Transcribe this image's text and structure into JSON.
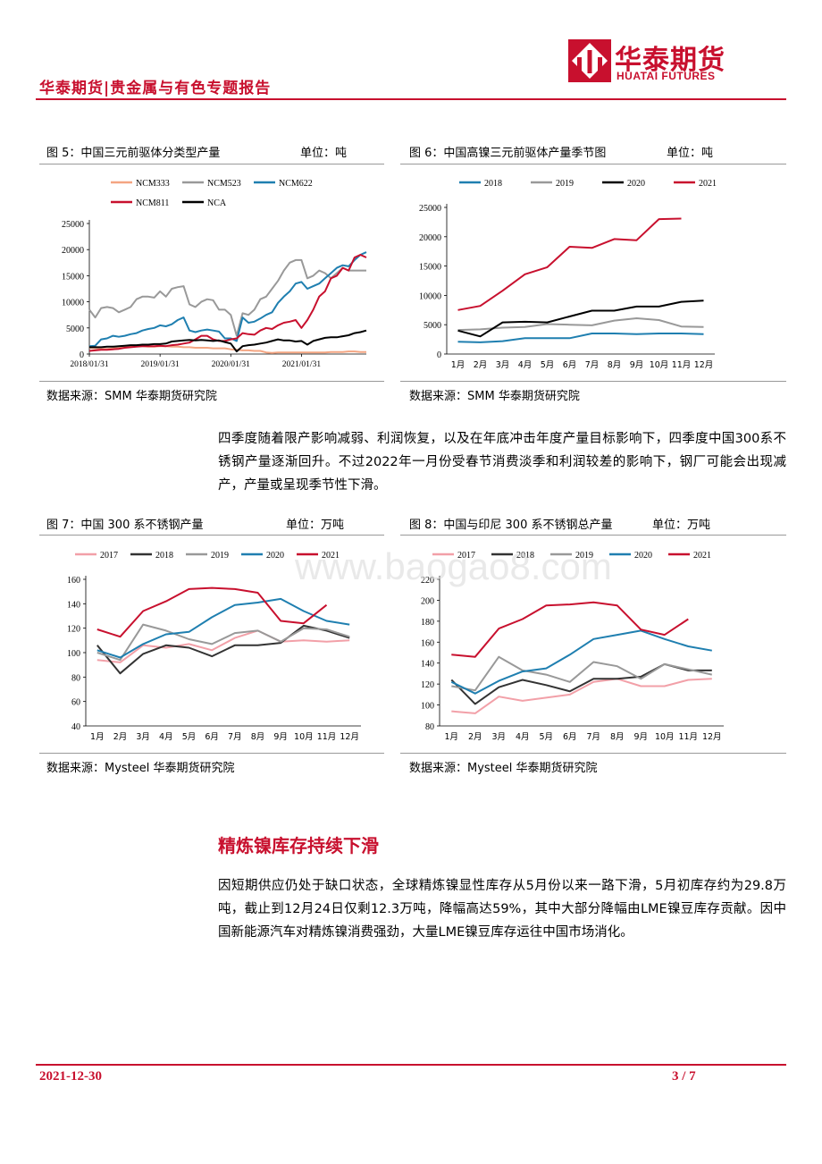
{
  "header": {
    "title": "华泰期货|贵金属与有色专题报告",
    "logo_cn": "华泰期货",
    "logo_en": "HUATAI FUTURES",
    "brand_color": "#c8102e"
  },
  "figures": [
    {
      "title": "图 5：中国三元前驱体分类型产量",
      "unit": "单位：吨",
      "source": "数据来源：SMM 华泰期货研究院"
    },
    {
      "title": "图 6：中国高镍三元前驱体产量季节图",
      "unit": "单位：吨",
      "source": "数据来源：SMM 华泰期货研究院"
    },
    {
      "title": "图 7：中国 300 系不锈钢产量",
      "unit": "单位：万吨",
      "source": "数据来源：Mysteel 华泰期货研究院"
    },
    {
      "title": "图 8：中国与印尼 300 系不锈钢总产量",
      "unit": "单位：万吨",
      "source": "数据来源：Mysteel 华泰期货研究院"
    }
  ],
  "paragraph1": "四季度随着限产影响减弱、利润恢复，以及在年底冲击年度产量目标影响下，四季度中国300系不锈钢产量逐渐回升。不过2022年一月份受春节消费淡季和利润较差的影响下，钢厂可能会出现减产，产量或呈现季节性下滑。",
  "section_title": "精炼镍库存持续下滑",
  "paragraph2": "因短期供应仍处于缺口状态，全球精炼镍显性库存从5月份以来一路下滑，5月初库存约为29.8万吨，截止到12月24日仅剩12.3万吨，降幅高达59%，其中大部分降幅由LME镍豆库存贡献。因中国新能源汽车对精炼镍消费强劲，大量LME镍豆库存运往中国市场消化。",
  "watermark": "www.baogao8.com",
  "footer": {
    "date": "2021-12-30",
    "page": "3 / 7"
  },
  "chart_data": [
    {
      "type": "line",
      "title": "图 5：中国三元前驱体分类型产量",
      "ylim": [
        0,
        25000
      ],
      "yticks": [
        "0",
        "5000",
        "10000",
        "15000",
        "20000",
        "25000"
      ],
      "xticks": [
        "2018/01/31",
        "2019/01/31",
        "2020/01/31",
        "2021/01/31"
      ],
      "n_points": 48,
      "series": [
        {
          "name": "NCM333",
          "color": "#f4a582",
          "values": [
            1200,
            1100,
            1000,
            1000,
            1100,
            1200,
            1300,
            1400,
            1500,
            1500,
            1400,
            1400,
            1500,
            1500,
            1400,
            1400,
            1300,
            1300,
            1200,
            1200,
            1200,
            1100,
            1100,
            1100,
            900,
            800,
            700,
            700,
            600,
            600,
            300,
            200,
            300,
            300,
            300,
            300,
            300,
            300,
            300,
            300,
            300,
            400,
            400,
            400,
            500,
            500,
            400,
            400
          ]
        },
        {
          "name": "NCM523",
          "color": "#999999",
          "values": [
            8500,
            7000,
            8800,
            9000,
            8800,
            8000,
            8500,
            9000,
            10500,
            11000,
            11000,
            10800,
            12000,
            11000,
            12500,
            12800,
            13000,
            9500,
            9000,
            10000,
            10500,
            10300,
            8500,
            8500,
            7500,
            3500,
            7800,
            7500,
            8500,
            10500,
            11000,
            12500,
            14000,
            16000,
            17500,
            18000,
            18000,
            14500,
            15000,
            16000,
            15500,
            14500,
            15500,
            16500,
            16000,
            16000,
            16000,
            16000
          ]
        },
        {
          "name": "NCM622",
          "color": "#1f7fb0",
          "values": [
            1500,
            1600,
            2800,
            3000,
            3500,
            3300,
            3500,
            3800,
            4000,
            4500,
            4800,
            5000,
            5500,
            5300,
            5700,
            6500,
            7000,
            4500,
            4200,
            4500,
            4700,
            4500,
            4300,
            3000,
            3000,
            2500,
            7000,
            6000,
            6200,
            6800,
            7500,
            8000,
            9800,
            11000,
            12000,
            13500,
            13800,
            12500,
            13000,
            13500,
            14500,
            15500,
            16500,
            17000,
            16800,
            18000,
            19000,
            19500
          ]
        },
        {
          "name": "NCM811",
          "color": "#c8102e",
          "values": [
            600,
            700,
            800,
            800,
            900,
            1000,
            1200,
            1300,
            1400,
            1500,
            1500,
            1500,
            1600,
            1500,
            1700,
            1800,
            2000,
            2200,
            2800,
            3500,
            3500,
            2800,
            2500,
            2500,
            2800,
            3000,
            4000,
            3800,
            3700,
            4500,
            5000,
            4800,
            5500,
            6000,
            6200,
            6500,
            5000,
            6500,
            8500,
            11000,
            12000,
            14500,
            15000,
            16500,
            16000,
            18500,
            19000,
            18500
          ]
        },
        {
          "name": "NCA",
          "color": "#000000",
          "values": [
            1300,
            1300,
            1300,
            1400,
            1400,
            1500,
            1600,
            1700,
            1700,
            1800,
            1800,
            1900,
            1900,
            2000,
            2400,
            2500,
            2600,
            2700,
            2600,
            2700,
            2600,
            2500,
            2600,
            2300,
            2000,
            500,
            1500,
            1700,
            1800,
            2000,
            2200,
            2500,
            2800,
            2600,
            2600,
            2400,
            2500,
            1800,
            2500,
            2800,
            3100,
            3200,
            3200,
            3400,
            3600,
            4000,
            4200,
            4500
          ]
        }
      ]
    },
    {
      "type": "line",
      "title": "图 6：中国高镍三元前驱体产量季节图",
      "ylim": [
        0,
        25000
      ],
      "yticks": [
        "0",
        "5000",
        "10000",
        "15000",
        "20000",
        "25000"
      ],
      "categories": [
        "1月",
        "2月",
        "3月",
        "4月",
        "5月",
        "6月",
        "7月",
        "8月",
        "9月",
        "10月",
        "11月",
        "12月"
      ],
      "series": [
        {
          "name": "2018",
          "color": "#1f7fb0",
          "values": [
            2100,
            2000,
            2200,
            2700,
            2700,
            2700,
            3500,
            3500,
            3400,
            3500,
            3500,
            3400
          ]
        },
        {
          "name": "2019",
          "color": "#999999",
          "values": [
            4100,
            4200,
            4500,
            4600,
            5100,
            5000,
            4900,
            5700,
            6100,
            5800,
            4700,
            4600
          ]
        },
        {
          "name": "2020",
          "color": "#000000",
          "values": [
            4000,
            3000,
            5400,
            5500,
            5400,
            6400,
            7400,
            7400,
            8100,
            8100,
            8900,
            9100
          ]
        },
        {
          "name": "2021",
          "color": "#c8102e",
          "values": [
            7500,
            8200,
            10800,
            13600,
            14800,
            18300,
            18100,
            19600,
            19400,
            23000,
            23100,
            null
          ]
        }
      ]
    },
    {
      "type": "line",
      "title": "图 7：中国 300 系不锈钢产量",
      "ylim": [
        40,
        160
      ],
      "yticks": [
        "40",
        "60",
        "80",
        "100",
        "120",
        "140",
        "160"
      ],
      "categories": [
        "1月",
        "2月",
        "3月",
        "4月",
        "5月",
        "6月",
        "7月",
        "8月",
        "9月",
        "10月",
        "11月",
        "12月"
      ],
      "series": [
        {
          "name": "2017",
          "color": "#f2a0a8",
          "values": [
            94,
            92,
            106,
            104,
            107,
            102,
            112,
            118,
            109,
            110,
            109,
            110
          ]
        },
        {
          "name": "2018",
          "color": "#333333",
          "values": [
            106,
            83,
            99,
            106,
            104,
            97,
            106,
            106,
            108,
            122,
            118,
            112
          ]
        },
        {
          "name": "2019",
          "color": "#999999",
          "values": [
            100,
            94,
            123,
            118,
            111,
            107,
            116,
            118,
            109,
            120,
            119,
            113
          ]
        },
        {
          "name": "2020",
          "color": "#1f7fb0",
          "values": [
            102,
            96,
            107,
            115,
            117,
            129,
            139,
            141,
            144,
            134,
            126,
            123
          ]
        },
        {
          "name": "2021",
          "color": "#c8102e",
          "values": [
            119,
            113,
            134,
            142,
            152,
            153,
            152,
            149,
            126,
            124,
            139,
            null
          ]
        }
      ]
    },
    {
      "type": "line",
      "title": "图 8：中国与印尼 300 系不锈钢总产量",
      "ylim": [
        80,
        220
      ],
      "yticks": [
        "80",
        "100",
        "120",
        "140",
        "160",
        "180",
        "200",
        "220"
      ],
      "categories": [
        "1月",
        "2月",
        "3月",
        "4月",
        "5月",
        "6月",
        "7月",
        "8月",
        "9月",
        "10月",
        "11月",
        "12月"
      ],
      "series": [
        {
          "name": "2017",
          "color": "#f2a0a8",
          "values": [
            94,
            92,
            108,
            104,
            107,
            110,
            122,
            125,
            118,
            118,
            124,
            125
          ]
        },
        {
          "name": "2018",
          "color": "#333333",
          "values": [
            124,
            101,
            117,
            124,
            119,
            113,
            125,
            125,
            127,
            139,
            133,
            133
          ]
        },
        {
          "name": "2019",
          "color": "#999999",
          "values": [
            118,
            114,
            146,
            133,
            129,
            122,
            141,
            137,
            125,
            139,
            134,
            129
          ]
        },
        {
          "name": "2020",
          "color": "#1f7fb0",
          "values": [
            122,
            111,
            123,
            132,
            135,
            148,
            163,
            167,
            171,
            163,
            156,
            152
          ]
        },
        {
          "name": "2021",
          "color": "#c8102e",
          "values": [
            148,
            146,
            173,
            182,
            195,
            196,
            198,
            195,
            172,
            167,
            182,
            null
          ]
        }
      ]
    }
  ]
}
